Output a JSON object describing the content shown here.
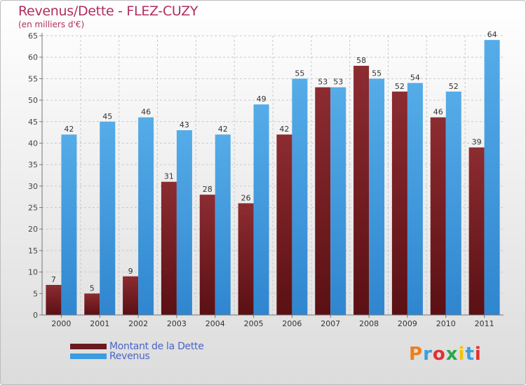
{
  "chart_data": {
    "type": "bar",
    "title": "Revenus/Dette - FLEZ-CUZY",
    "subtitle": "(en milliers d'€)",
    "categories": [
      "2000",
      "2001",
      "2002",
      "2003",
      "2004",
      "2005",
      "2006",
      "2007",
      "2008",
      "2009",
      "2010",
      "2011"
    ],
    "series": [
      {
        "name": "Montant de la Dette",
        "values": [
          7,
          5,
          9,
          31,
          28,
          26,
          42,
          53,
          58,
          52,
          46,
          39
        ],
        "color": "#7a2228"
      },
      {
        "name": "Revenus",
        "values": [
          42,
          45,
          46,
          43,
          42,
          49,
          55,
          53,
          55,
          54,
          52,
          64
        ],
        "color": "#3d9be0"
      }
    ],
    "ylim": [
      0,
      65
    ],
    "yticks": [
      0,
      5,
      10,
      15,
      20,
      25,
      30,
      35,
      40,
      45,
      50,
      55,
      60,
      65
    ],
    "grid": true,
    "legend_position": "bottom-left"
  },
  "brand": {
    "text": "Proxiti",
    "colors": [
      "#ef7f1a",
      "#3aa0dc",
      "#e3302f",
      "#2aa84a",
      "#f4c20d",
      "#3aa0dc",
      "#e3302f"
    ]
  }
}
